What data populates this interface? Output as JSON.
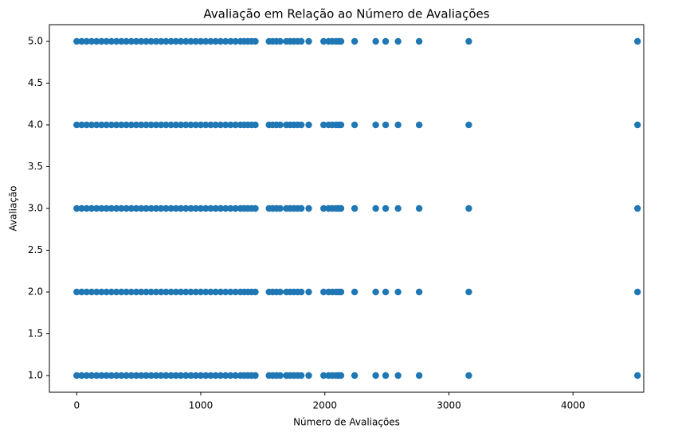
{
  "chart_data": {
    "type": "scatter",
    "title": "Avaliação em Relação ao Número de Avaliações",
    "xlabel": "Número de Avaliações",
    "ylabel": "Avaliação",
    "color": "#1f77b4",
    "xlim": [
      -220,
      4570
    ],
    "ylim": [
      0.8,
      5.2
    ],
    "xticks": [
      0,
      1000,
      2000,
      3000,
      4000
    ],
    "yticks": [
      {
        "value": 1,
        "label": "1.0"
      },
      {
        "value": 1.5,
        "label": "1.5"
      },
      {
        "value": 2,
        "label": "2.0"
      },
      {
        "value": 2.5,
        "label": "2.5"
      },
      {
        "value": 3,
        "label": "3.0"
      },
      {
        "value": 3.5,
        "label": "3.5"
      },
      {
        "value": 4,
        "label": "4.0"
      },
      {
        "value": 4.5,
        "label": "4.5"
      },
      {
        "value": 5,
        "label": "5.0"
      }
    ],
    "x": [
      0,
      40,
      80,
      120,
      160,
      200,
      240,
      280,
      320,
      360,
      400,
      440,
      480,
      520,
      560,
      600,
      640,
      680,
      720,
      760,
      800,
      840,
      880,
      920,
      960,
      1000,
      1040,
      1080,
      1120,
      1160,
      1200,
      1240,
      1280,
      1320,
      1350,
      1380,
      1410,
      1440,
      1550,
      1580,
      1610,
      1640,
      1690,
      1720,
      1750,
      1780,
      1810,
      1870,
      1990,
      2030,
      2060,
      2090,
      2110,
      2130,
      2240,
      2410,
      2490,
      2590,
      2760,
      3160,
      4520,
      0,
      40,
      80,
      120,
      160,
      200,
      240,
      280,
      320,
      360,
      400,
      440,
      480,
      520,
      560,
      600,
      640,
      680,
      720,
      760,
      800,
      840,
      880,
      920,
      960,
      1000,
      1040,
      1080,
      1120,
      1160,
      1200,
      1240,
      1280,
      1320,
      1350,
      1380,
      1410,
      1440,
      1550,
      1580,
      1610,
      1640,
      1690,
      1720,
      1750,
      1780,
      1810,
      1870,
      1990,
      2030,
      2060,
      2090,
      2110,
      2130,
      2240,
      2410,
      2490,
      2590,
      2760,
      3160,
      4520,
      0,
      40,
      80,
      120,
      160,
      200,
      240,
      280,
      320,
      360,
      400,
      440,
      480,
      520,
      560,
      600,
      640,
      680,
      720,
      760,
      800,
      840,
      880,
      920,
      960,
      1000,
      1040,
      1080,
      1120,
      1160,
      1200,
      1240,
      1280,
      1320,
      1350,
      1380,
      1410,
      1440,
      1550,
      1580,
      1610,
      1640,
      1690,
      1720,
      1750,
      1780,
      1810,
      1870,
      1990,
      2030,
      2060,
      2090,
      2110,
      2130,
      2240,
      2410,
      2490,
      2590,
      2760,
      3160,
      4520,
      0,
      40,
      80,
      120,
      160,
      200,
      240,
      280,
      320,
      360,
      400,
      440,
      480,
      520,
      560,
      600,
      640,
      680,
      720,
      760,
      800,
      840,
      880,
      920,
      960,
      1000,
      1040,
      1080,
      1120,
      1160,
      1200,
      1240,
      1280,
      1320,
      1350,
      1380,
      1410,
      1440,
      1550,
      1580,
      1610,
      1640,
      1690,
      1720,
      1750,
      1780,
      1810,
      1870,
      1990,
      2030,
      2060,
      2090,
      2110,
      2130,
      2240,
      2410,
      2490,
      2590,
      2760,
      3160,
      4520,
      0,
      40,
      80,
      120,
      160,
      200,
      240,
      280,
      320,
      360,
      400,
      440,
      480,
      520,
      560,
      600,
      640,
      680,
      720,
      760,
      800,
      840,
      880,
      920,
      960,
      1000,
      1040,
      1080,
      1120,
      1160,
      1200,
      1240,
      1280,
      1320,
      1350,
      1380,
      1410,
      1440,
      1550,
      1580,
      1610,
      1640,
      1690,
      1720,
      1750,
      1780,
      1810,
      1870,
      1990,
      2030,
      2060,
      2090,
      2110,
      2130,
      2240,
      2410,
      2490,
      2590,
      2760,
      3160,
      4520
    ],
    "y": [
      5,
      5,
      5,
      5,
      5,
      5,
      5,
      5,
      5,
      5,
      5,
      5,
      5,
      5,
      5,
      5,
      5,
      5,
      5,
      5,
      5,
      5,
      5,
      5,
      5,
      5,
      5,
      5,
      5,
      5,
      5,
      5,
      5,
      5,
      5,
      5,
      5,
      5,
      5,
      5,
      5,
      5,
      5,
      5,
      5,
      5,
      5,
      5,
      5,
      5,
      5,
      5,
      5,
      5,
      5,
      5,
      5,
      5,
      5,
      5,
      5,
      4,
      4,
      4,
      4,
      4,
      4,
      4,
      4,
      4,
      4,
      4,
      4,
      4,
      4,
      4,
      4,
      4,
      4,
      4,
      4,
      4,
      4,
      4,
      4,
      4,
      4,
      4,
      4,
      4,
      4,
      4,
      4,
      4,
      4,
      4,
      4,
      4,
      4,
      4,
      4,
      4,
      4,
      4,
      4,
      4,
      4,
      4,
      4,
      4,
      4,
      4,
      4,
      4,
      4,
      4,
      4,
      4,
      4,
      4,
      4,
      4,
      3,
      3,
      3,
      3,
      3,
      3,
      3,
      3,
      3,
      3,
      3,
      3,
      3,
      3,
      3,
      3,
      3,
      3,
      3,
      3,
      3,
      3,
      3,
      3,
      3,
      3,
      3,
      3,
      3,
      3,
      3,
      3,
      3,
      3,
      3,
      3,
      3,
      3,
      3,
      3,
      3,
      3,
      3,
      3,
      3,
      3,
      3,
      3,
      3,
      3,
      3,
      3,
      3,
      3,
      3,
      3,
      3,
      3,
      3,
      3,
      3,
      2,
      2,
      2,
      2,
      2,
      2,
      2,
      2,
      2,
      2,
      2,
      2,
      2,
      2,
      2,
      2,
      2,
      2,
      2,
      2,
      2,
      2,
      2,
      2,
      2,
      2,
      2,
      2,
      2,
      2,
      2,
      2,
      2,
      2,
      2,
      2,
      2,
      2,
      2,
      2,
      2,
      2,
      2,
      2,
      2,
      2,
      2,
      2,
      2,
      2,
      2,
      2,
      2,
      2,
      2,
      2,
      2,
      2,
      2,
      2,
      2,
      1,
      1,
      1,
      1,
      1,
      1,
      1,
      1,
      1,
      1,
      1,
      1,
      1,
      1,
      1,
      1,
      1,
      1,
      1,
      1,
      1,
      1,
      1,
      1,
      1,
      1,
      1,
      1,
      1,
      1,
      1,
      1,
      1,
      1,
      1,
      1,
      1,
      1,
      1,
      1,
      1,
      1,
      1,
      1,
      1,
      1,
      1,
      1,
      1,
      1,
      1,
      1,
      1,
      1,
      1,
      1,
      1,
      1,
      1,
      1,
      1
    ]
  }
}
